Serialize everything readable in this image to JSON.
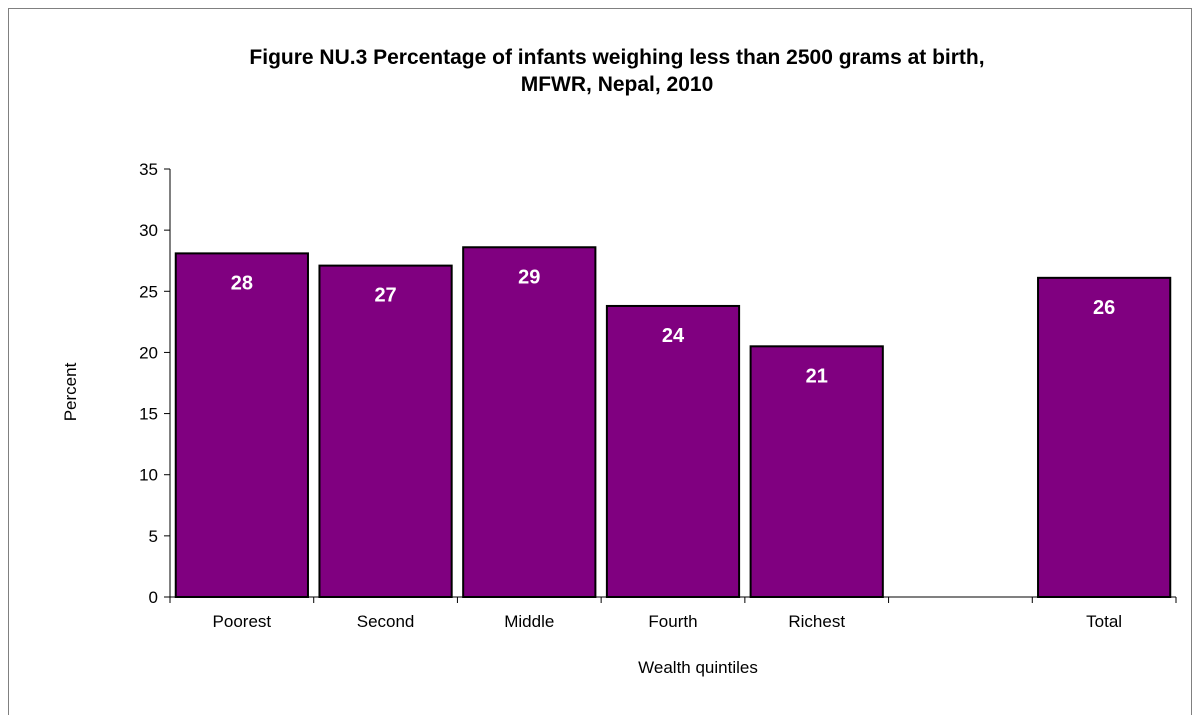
{
  "chart_data": {
    "type": "bar",
    "title_line1": "Figure NU.3 Percentage of infants weighing less than 2500 grams at birth,",
    "title_line2": "MFWR, Nepal, 2010",
    "xlabel": "Wealth quintiles",
    "ylabel": "Percent",
    "ylim": [
      0,
      35
    ],
    "yticks": [
      0,
      5,
      10,
      15,
      20,
      25,
      30,
      35
    ],
    "categories": [
      "Poorest",
      "Second",
      "Middle",
      "Fourth",
      "Richest",
      "",
      "Total"
    ],
    "values": [
      28.1,
      27.1,
      28.6,
      23.8,
      20.5,
      null,
      26.1
    ],
    "data_labels": [
      "28",
      "27",
      "29",
      "24",
      "21",
      "",
      "26"
    ],
    "bar_color": "#800080",
    "grid": false,
    "legend": "none"
  }
}
